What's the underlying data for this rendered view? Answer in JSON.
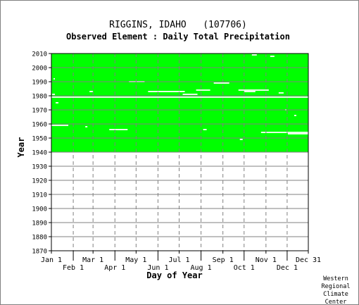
{
  "chart_data": {
    "type": "heatmap",
    "title": "RIGGINS, IDAHO   (107706)",
    "subtitle": "Observed Element : Daily Total Precipitation",
    "xlabel": "Day of Year",
    "ylabel": "Year",
    "x_range_days": [
      1,
      365
    ],
    "ylim": [
      1870,
      2010
    ],
    "y_ticks": [
      1870,
      1880,
      1890,
      1900,
      1910,
      1920,
      1930,
      1940,
      1950,
      1960,
      1970,
      1980,
      1990,
      2000,
      2010
    ],
    "x_ticks_top_row": [
      {
        "label": "Jan 1",
        "day": 1
      },
      {
        "label": "Mar 1",
        "day": 60
      },
      {
        "label": "May 1",
        "day": 121
      },
      {
        "label": "Jul 1",
        "day": 182
      },
      {
        "label": "Sep 1",
        "day": 244
      },
      {
        "label": "Nov 1",
        "day": 305
      },
      {
        "label": "Dec 31",
        "day": 365
      }
    ],
    "x_ticks_bottom_row": [
      {
        "label": "Feb 1",
        "day": 32
      },
      {
        "label": "Apr 1",
        "day": 91
      },
      {
        "label": "Jun 1",
        "day": 152
      },
      {
        "label": "Aug 1",
        "day": 213
      },
      {
        "label": "Oct 1",
        "day": 274
      },
      {
        "label": "Dec 1",
        "day": 335
      }
    ],
    "grid": true,
    "data_color": "#00ff00",
    "missing_color": "#ffffff",
    "coverage": {
      "first_year": 1940,
      "last_year": 2010
    },
    "missing_spans": [
      {
        "year": 1979,
        "start_day": 1,
        "end_day": 365
      },
      {
        "year": 1959,
        "start_day": 1,
        "end_day": 25
      },
      {
        "year": 1956,
        "start_day": 83,
        "end_day": 109
      },
      {
        "year": 1990,
        "start_day": 111,
        "end_day": 133
      },
      {
        "year": 1983,
        "start_day": 138,
        "end_day": 190
      },
      {
        "year": 1981,
        "start_day": 187,
        "end_day": 208
      },
      {
        "year": 1984,
        "start_day": 206,
        "end_day": 226
      },
      {
        "year": 1989,
        "start_day": 231,
        "end_day": 253
      },
      {
        "year": 1984,
        "start_day": 266,
        "end_day": 309
      },
      {
        "year": 1983,
        "start_day": 274,
        "end_day": 290
      },
      {
        "year": 1954,
        "start_day": 298,
        "end_day": 365
      },
      {
        "year": 1953,
        "start_day": 336,
        "end_day": 365
      },
      {
        "year": 1958,
        "start_day": 49,
        "end_day": 52
      },
      {
        "year": 1983,
        "start_day": 55,
        "end_day": 60
      },
      {
        "year": 1982,
        "start_day": 323,
        "end_day": 330
      },
      {
        "year": 1981,
        "start_day": 2,
        "end_day": 6
      },
      {
        "year": 1975,
        "start_day": 7,
        "end_day": 11
      },
      {
        "year": 1992,
        "start_day": 4,
        "end_day": 6
      },
      {
        "year": 1970,
        "start_day": 332,
        "end_day": 334
      },
      {
        "year": 1966,
        "start_day": 345,
        "end_day": 348
      },
      {
        "year": 1956,
        "start_day": 216,
        "end_day": 221
      },
      {
        "year": 1949,
        "start_day": 268,
        "end_day": 272
      },
      {
        "year": 2009,
        "start_day": 285,
        "end_day": 292
      },
      {
        "year": 2008,
        "start_day": 311,
        "end_day": 317
      }
    ]
  },
  "credit": {
    "lines": [
      "Western",
      "Regional",
      "Climate",
      "Center"
    ]
  }
}
